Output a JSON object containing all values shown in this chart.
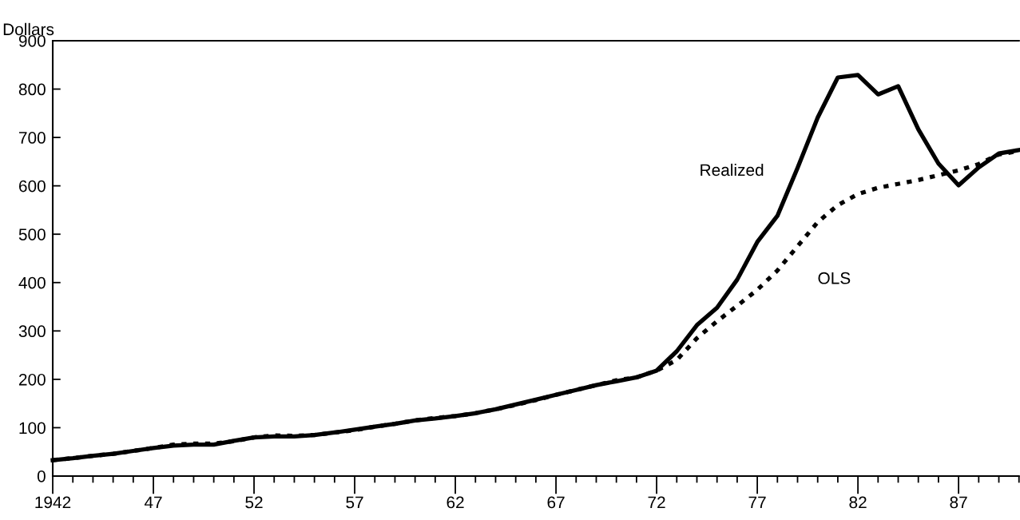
{
  "chart_data": {
    "type": "line",
    "ylabel": "Dollars",
    "x": [
      1942,
      1943,
      1944,
      1945,
      1946,
      1947,
      1948,
      1949,
      1950,
      1951,
      1952,
      1953,
      1954,
      1955,
      1956,
      1957,
      1958,
      1959,
      1960,
      1961,
      1962,
      1963,
      1964,
      1965,
      1966,
      1967,
      1968,
      1969,
      1970,
      1971,
      1972,
      1973,
      1974,
      1975,
      1976,
      1977,
      1978,
      1979,
      1980,
      1981,
      1982,
      1983,
      1984,
      1985,
      1986,
      1987,
      1988,
      1989,
      1990
    ],
    "series": [
      {
        "name": "Realized",
        "color": "#000000",
        "line_style": "solid",
        "values": [
          33,
          37,
          42,
          46,
          52,
          58,
          63,
          65,
          65,
          73,
          80,
          82,
          82,
          85,
          90,
          96,
          102,
          108,
          115,
          119,
          124,
          130,
          138,
          148,
          158,
          168,
          178,
          188,
          196,
          204,
          218,
          258,
          312,
          348,
          406,
          484,
          538,
          637,
          741,
          824,
          829,
          789,
          806,
          717,
          646,
          601,
          638,
          667,
          674
        ]
      },
      {
        "name": "OLS",
        "color": "#000000",
        "line_style": "dotted",
        "values": [
          33,
          37,
          42,
          46,
          52,
          58,
          65,
          67,
          67,
          72,
          80,
          84,
          83,
          85,
          90,
          95,
          102,
          108,
          115,
          120,
          124,
          130,
          138,
          147,
          157,
          168,
          178,
          188,
          198,
          204,
          218,
          240,
          285,
          320,
          352,
          385,
          425,
          475,
          525,
          560,
          583,
          596,
          604,
          612,
          622,
          632,
          645,
          665,
          672
        ]
      }
    ],
    "xlim": [
      1942,
      1990
    ],
    "xticks": [
      {
        "value": 1942,
        "label": "1942"
      },
      {
        "value": 1943,
        "label": null
      },
      {
        "value": 1944,
        "label": null
      },
      {
        "value": 1945,
        "label": null
      },
      {
        "value": 1946,
        "label": null
      },
      {
        "value": 1947,
        "label": "47"
      },
      {
        "value": 1948,
        "label": null
      },
      {
        "value": 1949,
        "label": null
      },
      {
        "value": 1950,
        "label": null
      },
      {
        "value": 1951,
        "label": null
      },
      {
        "value": 1952,
        "label": "52"
      },
      {
        "value": 1953,
        "label": null
      },
      {
        "value": 1954,
        "label": null
      },
      {
        "value": 1955,
        "label": null
      },
      {
        "value": 1956,
        "label": null
      },
      {
        "value": 1957,
        "label": "57"
      },
      {
        "value": 1958,
        "label": null
      },
      {
        "value": 1959,
        "label": null
      },
      {
        "value": 1960,
        "label": null
      },
      {
        "value": 1961,
        "label": null
      },
      {
        "value": 1962,
        "label": "62"
      },
      {
        "value": 1963,
        "label": null
      },
      {
        "value": 1964,
        "label": null
      },
      {
        "value": 1965,
        "label": null
      },
      {
        "value": 1966,
        "label": null
      },
      {
        "value": 1967,
        "label": "67"
      },
      {
        "value": 1968,
        "label": null
      },
      {
        "value": 1969,
        "label": null
      },
      {
        "value": 1970,
        "label": null
      },
      {
        "value": 1971,
        "label": null
      },
      {
        "value": 1972,
        "label": "72"
      },
      {
        "value": 1973,
        "label": null
      },
      {
        "value": 1974,
        "label": null
      },
      {
        "value": 1975,
        "label": null
      },
      {
        "value": 1976,
        "label": null
      },
      {
        "value": 1977,
        "label": "77"
      },
      {
        "value": 1978,
        "label": null
      },
      {
        "value": 1979,
        "label": null
      },
      {
        "value": 1980,
        "label": null
      },
      {
        "value": 1981,
        "label": null
      },
      {
        "value": 1982,
        "label": "82"
      },
      {
        "value": 1983,
        "label": null
      },
      {
        "value": 1984,
        "label": null
      },
      {
        "value": 1985,
        "label": null
      },
      {
        "value": 1986,
        "label": null
      },
      {
        "value": 1987,
        "label": "87"
      },
      {
        "value": 1988,
        "label": null
      },
      {
        "value": 1989,
        "label": null
      },
      {
        "value": 1990,
        "label": null
      }
    ],
    "ylim": [
      0,
      900
    ],
    "yticks": [
      0,
      100,
      200,
      300,
      400,
      500,
      600,
      700,
      800,
      900
    ],
    "grid": false,
    "legend": false,
    "marker": "none"
  }
}
